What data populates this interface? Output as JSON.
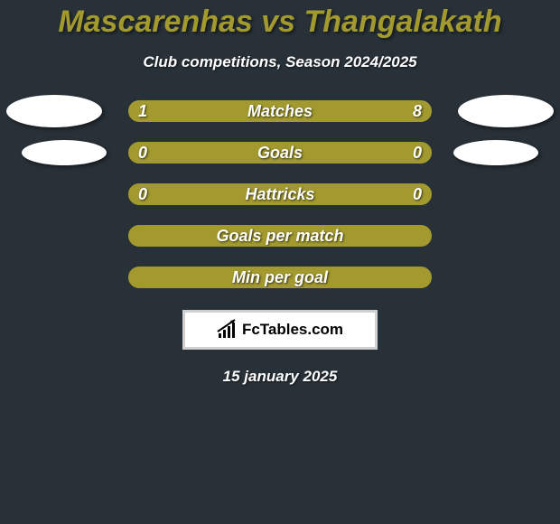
{
  "background_color": "#283138",
  "title": {
    "text": "Mascarenhas vs Thangalakath",
    "color": "#a29a2e",
    "fontsize": 34
  },
  "subtitle": {
    "text": "Club competitions, Season 2024/2025",
    "color": "#ffffff",
    "fontsize": 17
  },
  "stats": [
    {
      "label": "Matches",
      "left_value": "1",
      "right_value": "8",
      "left_fill_pct": 11.1,
      "right_fill_pct": 88.9,
      "fill_color": "#a29a2e",
      "border_color": "#a29a2e",
      "bg_color": "#c7c37c",
      "show_left_avatar": true,
      "show_right_avatar": true,
      "avatar_size": "large"
    },
    {
      "label": "Goals",
      "left_value": "0",
      "right_value": "0",
      "left_fill_pct": 0,
      "right_fill_pct": 0,
      "fill_color": "#a29a2e",
      "border_color": "#a29a2e",
      "bg_color": "#a29a2e",
      "show_left_avatar": true,
      "show_right_avatar": true,
      "avatar_size": "small"
    },
    {
      "label": "Hattricks",
      "left_value": "0",
      "right_value": "0",
      "left_fill_pct": 0,
      "right_fill_pct": 0,
      "fill_color": "#a29a2e",
      "border_color": "#a29a2e",
      "bg_color": "#a29a2e",
      "show_left_avatar": false,
      "show_right_avatar": false
    },
    {
      "label": "Goals per match",
      "left_value": "",
      "right_value": "",
      "left_fill_pct": 0,
      "right_fill_pct": 0,
      "fill_color": "#a29a2e",
      "border_color": "#a29a2e",
      "bg_color": "#a29a2e",
      "show_left_avatar": false,
      "show_right_avatar": false
    },
    {
      "label": "Min per goal",
      "left_value": "",
      "right_value": "",
      "left_fill_pct": 0,
      "right_fill_pct": 0,
      "fill_color": "#a29a2e",
      "border_color": "#a29a2e",
      "bg_color": "#a29a2e",
      "show_left_avatar": false,
      "show_right_avatar": false
    }
  ],
  "logo": {
    "text": "FcTables.com",
    "bg_color": "#ffffff",
    "border_color": "#d0d0d0"
  },
  "date": {
    "text": "15 january 2025",
    "color": "#ffffff"
  },
  "avatar_color": "#ffffff"
}
